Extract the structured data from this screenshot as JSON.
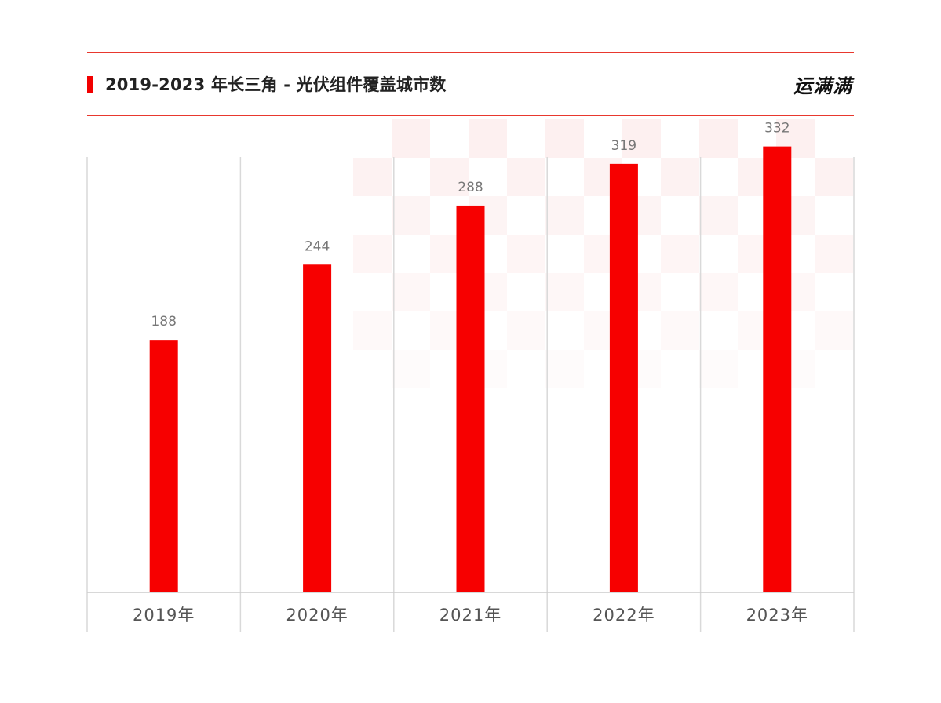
{
  "header": {
    "title": "2019-2023 年长三角 - 光伏组件覆盖城市数",
    "brand": "运满满"
  },
  "chart_data": {
    "type": "bar",
    "title": "2019-2023 年长三角 - 光伏组件覆盖城市数",
    "categories": [
      "2019年",
      "2020年",
      "2021年",
      "2022年",
      "2023年"
    ],
    "values": [
      188,
      244,
      288,
      319,
      332
    ],
    "xlabel": "",
    "ylabel": "",
    "ylim": [
      0,
      550
    ],
    "grid": false,
    "data_labels": true,
    "bar_color": "#f70000"
  },
  "colors": {
    "accent": "#f70000",
    "rule": "#e8382e",
    "watermark": "#fbe4e4"
  }
}
